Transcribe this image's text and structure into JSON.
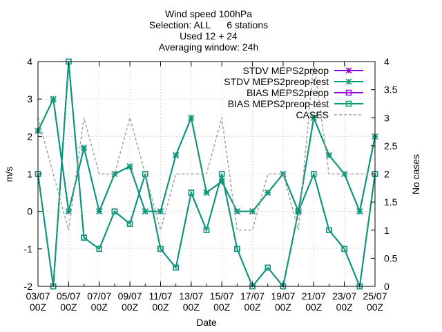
{
  "chart_data": {
    "type": "line",
    "title_lines": [
      "Wind speed 100hPa",
      "Selection: ALL      6 stations",
      "Used 12 + 24",
      "Averaging window: 24h"
    ],
    "xlabel": "Date",
    "ylabel": "m/s",
    "y2label": "No cases",
    "x": [
      "03/07 00Z",
      "04/07 00Z",
      "05/07 00Z",
      "06/07 00Z",
      "07/07 00Z",
      "08/07 00Z",
      "09/07 00Z",
      "10/07 00Z",
      "11/07 00Z",
      "12/07 00Z",
      "13/07 00Z",
      "14/07 00Z",
      "15/07 00Z",
      "16/07 00Z",
      "17/07 00Z",
      "18/07 00Z",
      "19/07 00Z",
      "20/07 00Z",
      "21/07 00Z",
      "22/07 00Z",
      "23/07 00Z",
      "24/07 00Z",
      "25/07 00Z"
    ],
    "xticks": [
      {
        "idx": 0,
        "line1": "03/07",
        "line2": "00Z"
      },
      {
        "idx": 2,
        "line1": "05/07",
        "line2": "00Z"
      },
      {
        "idx": 4,
        "line1": "07/07",
        "line2": "00Z"
      },
      {
        "idx": 6,
        "line1": "09/07",
        "line2": "00Z"
      },
      {
        "idx": 8,
        "line1": "11/07",
        "line2": "00Z"
      },
      {
        "idx": 10,
        "line1": "13/07",
        "line2": "00Z"
      },
      {
        "idx": 12,
        "line1": "15/07",
        "line2": "00Z"
      },
      {
        "idx": 14,
        "line1": "17/07",
        "line2": "00Z"
      },
      {
        "idx": 16,
        "line1": "19/07",
        "line2": "00Z"
      },
      {
        "idx": 18,
        "line1": "21/07",
        "line2": "00Z"
      },
      {
        "idx": 20,
        "line1": "23/07",
        "line2": "00Z"
      },
      {
        "idx": 22,
        "line1": "25/07",
        "line2": "00Z"
      }
    ],
    "ylim": [
      -2,
      4
    ],
    "yticks": [
      -2,
      -1,
      0,
      1,
      2,
      3,
      4
    ],
    "y2lim": [
      0,
      4
    ],
    "y2ticks": [
      0,
      0.5,
      1,
      1.5,
      2,
      2.5,
      3,
      3.5,
      4
    ],
    "legend_position": "top-right",
    "colors": {
      "preop": "#9400d3",
      "preop_test": "#009e73",
      "cases": "#a0a0a0"
    },
    "series": [
      {
        "name": "STDV MEPS2preop",
        "key": "stdv_preop",
        "axis": "y1",
        "marker": "star",
        "color": "#9400d3",
        "values": [
          2.15,
          3.0,
          0.0,
          1.7,
          0.0,
          1.0,
          1.2,
          0.0,
          0.0,
          1.5,
          2.5,
          0.5,
          0.8,
          0.0,
          0.0,
          0.5,
          1.0,
          0.0,
          2.5,
          1.5,
          1.0,
          0.0,
          2.0
        ]
      },
      {
        "name": "STDV MEPS2preop-test",
        "key": "stdv_test",
        "axis": "y1",
        "marker": "star",
        "color": "#009e73",
        "values": [
          2.15,
          3.0,
          0.0,
          1.7,
          0.0,
          1.0,
          1.2,
          0.0,
          0.0,
          1.5,
          2.5,
          0.5,
          0.8,
          0.0,
          0.0,
          0.5,
          1.0,
          0.0,
          2.5,
          1.5,
          1.0,
          0.0,
          2.0
        ]
      },
      {
        "name": "BIAS MEPS2preop",
        "key": "bias_preop",
        "axis": "y1",
        "marker": "square",
        "color": "#9400d3",
        "values": [
          1.0,
          -2.0,
          4.0,
          -0.7,
          -1.0,
          0.0,
          -0.33,
          1.0,
          -1.0,
          -1.5,
          0.5,
          -0.5,
          1.0,
          -1.0,
          -2.0,
          -1.5,
          -2.0,
          0.0,
          1.0,
          -0.5,
          -1.0,
          -2.0,
          1.0
        ]
      },
      {
        "name": "BIAS MEPS2preop-test",
        "key": "bias_test",
        "axis": "y1",
        "marker": "square",
        "color": "#009e73",
        "values": [
          1.0,
          -2.0,
          4.0,
          -0.7,
          -1.0,
          0.0,
          -0.33,
          1.0,
          -1.0,
          -1.5,
          0.5,
          -0.5,
          1.0,
          -1.0,
          -2.0,
          -1.5,
          -2.0,
          0.0,
          1.0,
          -0.5,
          -1.0,
          -2.0,
          1.0
        ]
      },
      {
        "name": "CASES",
        "key": "cases",
        "axis": "y2",
        "marker": "none",
        "color": "#a0a0a0",
        "dashed": true,
        "values": [
          3,
          2,
          1,
          3,
          2,
          2,
          3,
          2,
          1,
          2,
          2,
          2,
          3,
          1,
          1,
          2,
          2,
          1,
          4,
          2,
          2,
          2,
          2
        ]
      }
    ]
  }
}
